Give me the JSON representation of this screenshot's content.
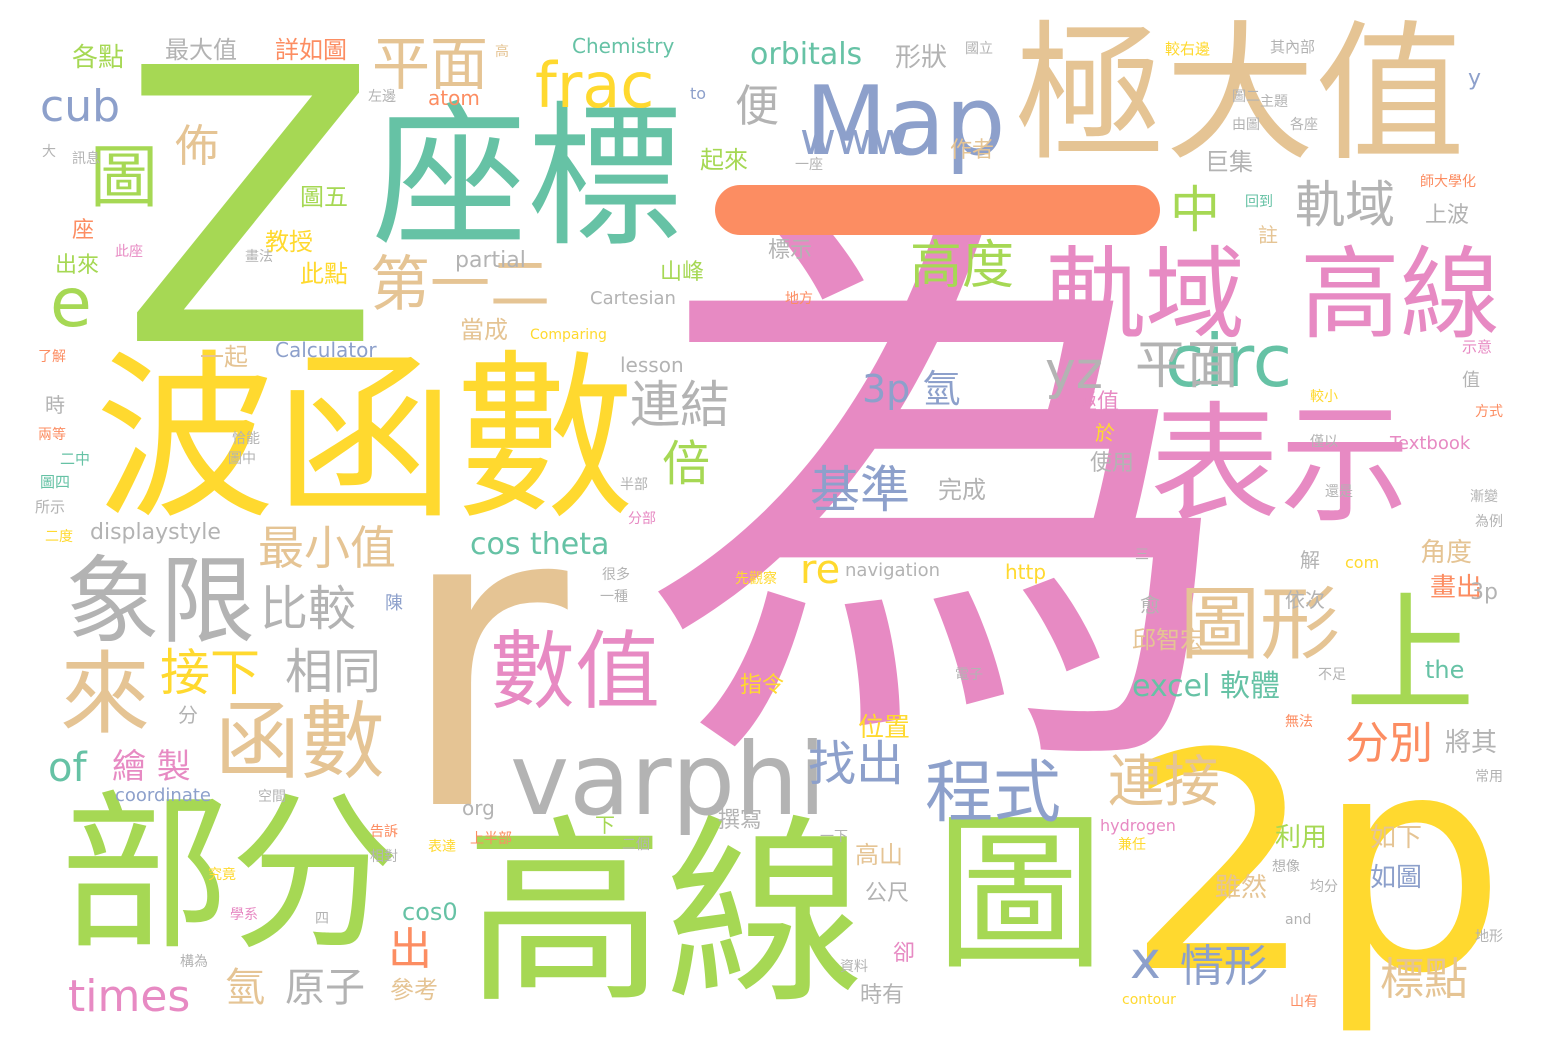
{
  "palette": {
    "green": "#a6d854",
    "pink": "#e78ac3",
    "tan": "#e5c494",
    "yellow": "#ffd92f",
    "teal": "#66c2a5",
    "blue": "#8da0cb",
    "orange": "#fc8d62",
    "gray": "#b3b3b3",
    "background": "#ffffff"
  },
  "words": {
    "wei": "為",
    "z": "Z",
    "r": "r",
    "two_p": "2p",
    "gaoxian_main": "高線",
    "bohanshu": "波函數",
    "zuobiao": "座標",
    "jidazhi": "極大值",
    "bufen": "部分",
    "tu_bottom": "圖",
    "biaoshi": "表示",
    "varphi": "varphi",
    "map": "Map",
    "yi": "一",
    "guiyu_1": "軌域",
    "gaoxian_2": "高線",
    "shang_big": "上",
    "xiangxian": "象限",
    "shuzhi": "數值",
    "hanshu": "函數",
    "tuxing": "圖形",
    "lai": "來",
    "circ": "circ",
    "frac": "frac",
    "e": "e",
    "tu_left": "圖",
    "cub": "cub",
    "pingmian_1": "平面",
    "disan": "第一二",
    "www": "www",
    "bian": "便",
    "bu": "佈",
    "gaodu": "高度",
    "zhong": "中",
    "guiyu_2": "軌域",
    "yz": "yz",
    "pingmian_2": "平面",
    "x": "x",
    "lianjie": "連結",
    "bei": "倍",
    "jizhun": "基準",
    "three_p_qing": "3p 氫",
    "zuixiaozhi": "最小值",
    "bijiao": "比較",
    "xiangtong": "相同",
    "jiexia": "接下",
    "zhaochu": "找出",
    "chengshi": "程式",
    "lianjie2": "連接",
    "fenbie": "分別",
    "re": "re",
    "chu": "出",
    "qingxing": "情形",
    "biaodian": "標點",
    "times": "times",
    "of": "of",
    "huizhi": "繪 製",
    "qing": "氫",
    "yuanzi": "原子",
    "orbitals": "orbitals",
    "chemistry": "Chemistry",
    "xingzhuang": "形狀",
    "zuodazhi": "最大值",
    "xiangrutu": "詳如圖",
    "gedian": "各點",
    "tu5": "圖五",
    "jiaoshou": "教授",
    "cidian": "此點",
    "chulai": "出來",
    "partial": "partial",
    "calculator": "Calculator",
    "dangcheng": "當成",
    "shanfeng": "山峰",
    "cartesian": "Cartesian",
    "yiqi": "一起",
    "lesson": "lesson",
    "wancheng": "完成",
    "displaystyle": "displaystyle",
    "cos_theta": "cos theta",
    "navigation": "navigation",
    "http": "http",
    "excel": "excel 軟體",
    "qiuzhihong": "邱智宏",
    "jiaodu": "角度",
    "huachu": "畫出",
    "jiangqi": "將其",
    "weizhi": "位置",
    "liyong": "利用",
    "ruxia": "如下",
    "rutu": "如圖",
    "suiran": "雖然",
    "gaoshan": "高山",
    "gongchi": "公尺",
    "cos0": "cos0",
    "cankao": "參考",
    "shiyou": "時有",
    "coordinate": "coordinate",
    "zhuanxie": "撰寫",
    "the": "the",
    "three_p": "3p",
    "jizhi": "極值",
    "shiyong": "使用",
    "atom": "atom",
    "zuozhe": "作者",
    "qilai": "起來",
    "jiji": "巨集",
    "shangbo": "上波",
    "biaoshi2": "標示",
    "to": "to",
    "textbook": "Textbook",
    "org": "org",
    "hydrogen": "hydrogen",
    "com": "com",
    "zhu": "註",
    "jie": "解",
    "yu": "於",
    "yiyi": "依次",
    "zhiling": "指令",
    "yue": "愈",
    "y": "y",
    "zuo": "座",
    "fen": "分",
    "que": "卻",
    "contour": "contour",
    "and": "and",
    "comparing": "Comparing",
    "shi": "時",
    "gao": "高",
    "qiyou": "其內部",
    "jiaoyouxuan": "較右邊",
    "dianzi": "電子",
    "chen": "陳",
    "shiyi": "示意",
    "zhi": "值",
    "fangshi": "方式",
    "erzhong": "二中",
    "tu4": "圖四",
    "suoshi": "所示",
    "xiao": "較小",
    "tu2": "圖二",
    "zhuti": "主題",
    "youli": "由圖",
    "gezuo": "各座",
    "shida": "師大學化",
    "huidao": "回到",
    "zuobian": "左邊",
    "xun": "訊息",
    "da": "大",
    "quanfa": "畫法",
    "cizuo": "此座",
    "liaojie": "了解",
    "liangdeng": "兩等",
    "qianeng": "恰能",
    "tuzhong": "圖中",
    "erdu": "二度",
    "banbu": "半部",
    "fenbu": "分部",
    "henduo": "很多",
    "yizhong": "一種",
    "xianguancha": "先觀察",
    "difang": "地方",
    "jianbian": "漸變",
    "weili": "為例",
    "jinyi": "僅以",
    "huanshi": "還是",
    "shangbanbu": "上半部",
    "gaosu": "告訴",
    "xiangdui": "相對",
    "kongjian": "空間",
    "xiayi": "一下",
    "jianren": "兼任",
    "xiangxiang": "想像",
    "junfen": "均分",
    "changyong": "常用",
    "wufa": "無法",
    "buzu": "不足",
    "dixing": "地形",
    "shanyou": "山有",
    "ziliao": "資料",
    "gouwei": "構為",
    "jiuji": "究竟",
    "xuexi": "學系",
    "si": "四",
    "biaoda": "表達",
    "xia": "下",
    "erge": "二個",
    "san": "三",
    "yizuo": "一座",
    "guoli": "國立"
  }
}
